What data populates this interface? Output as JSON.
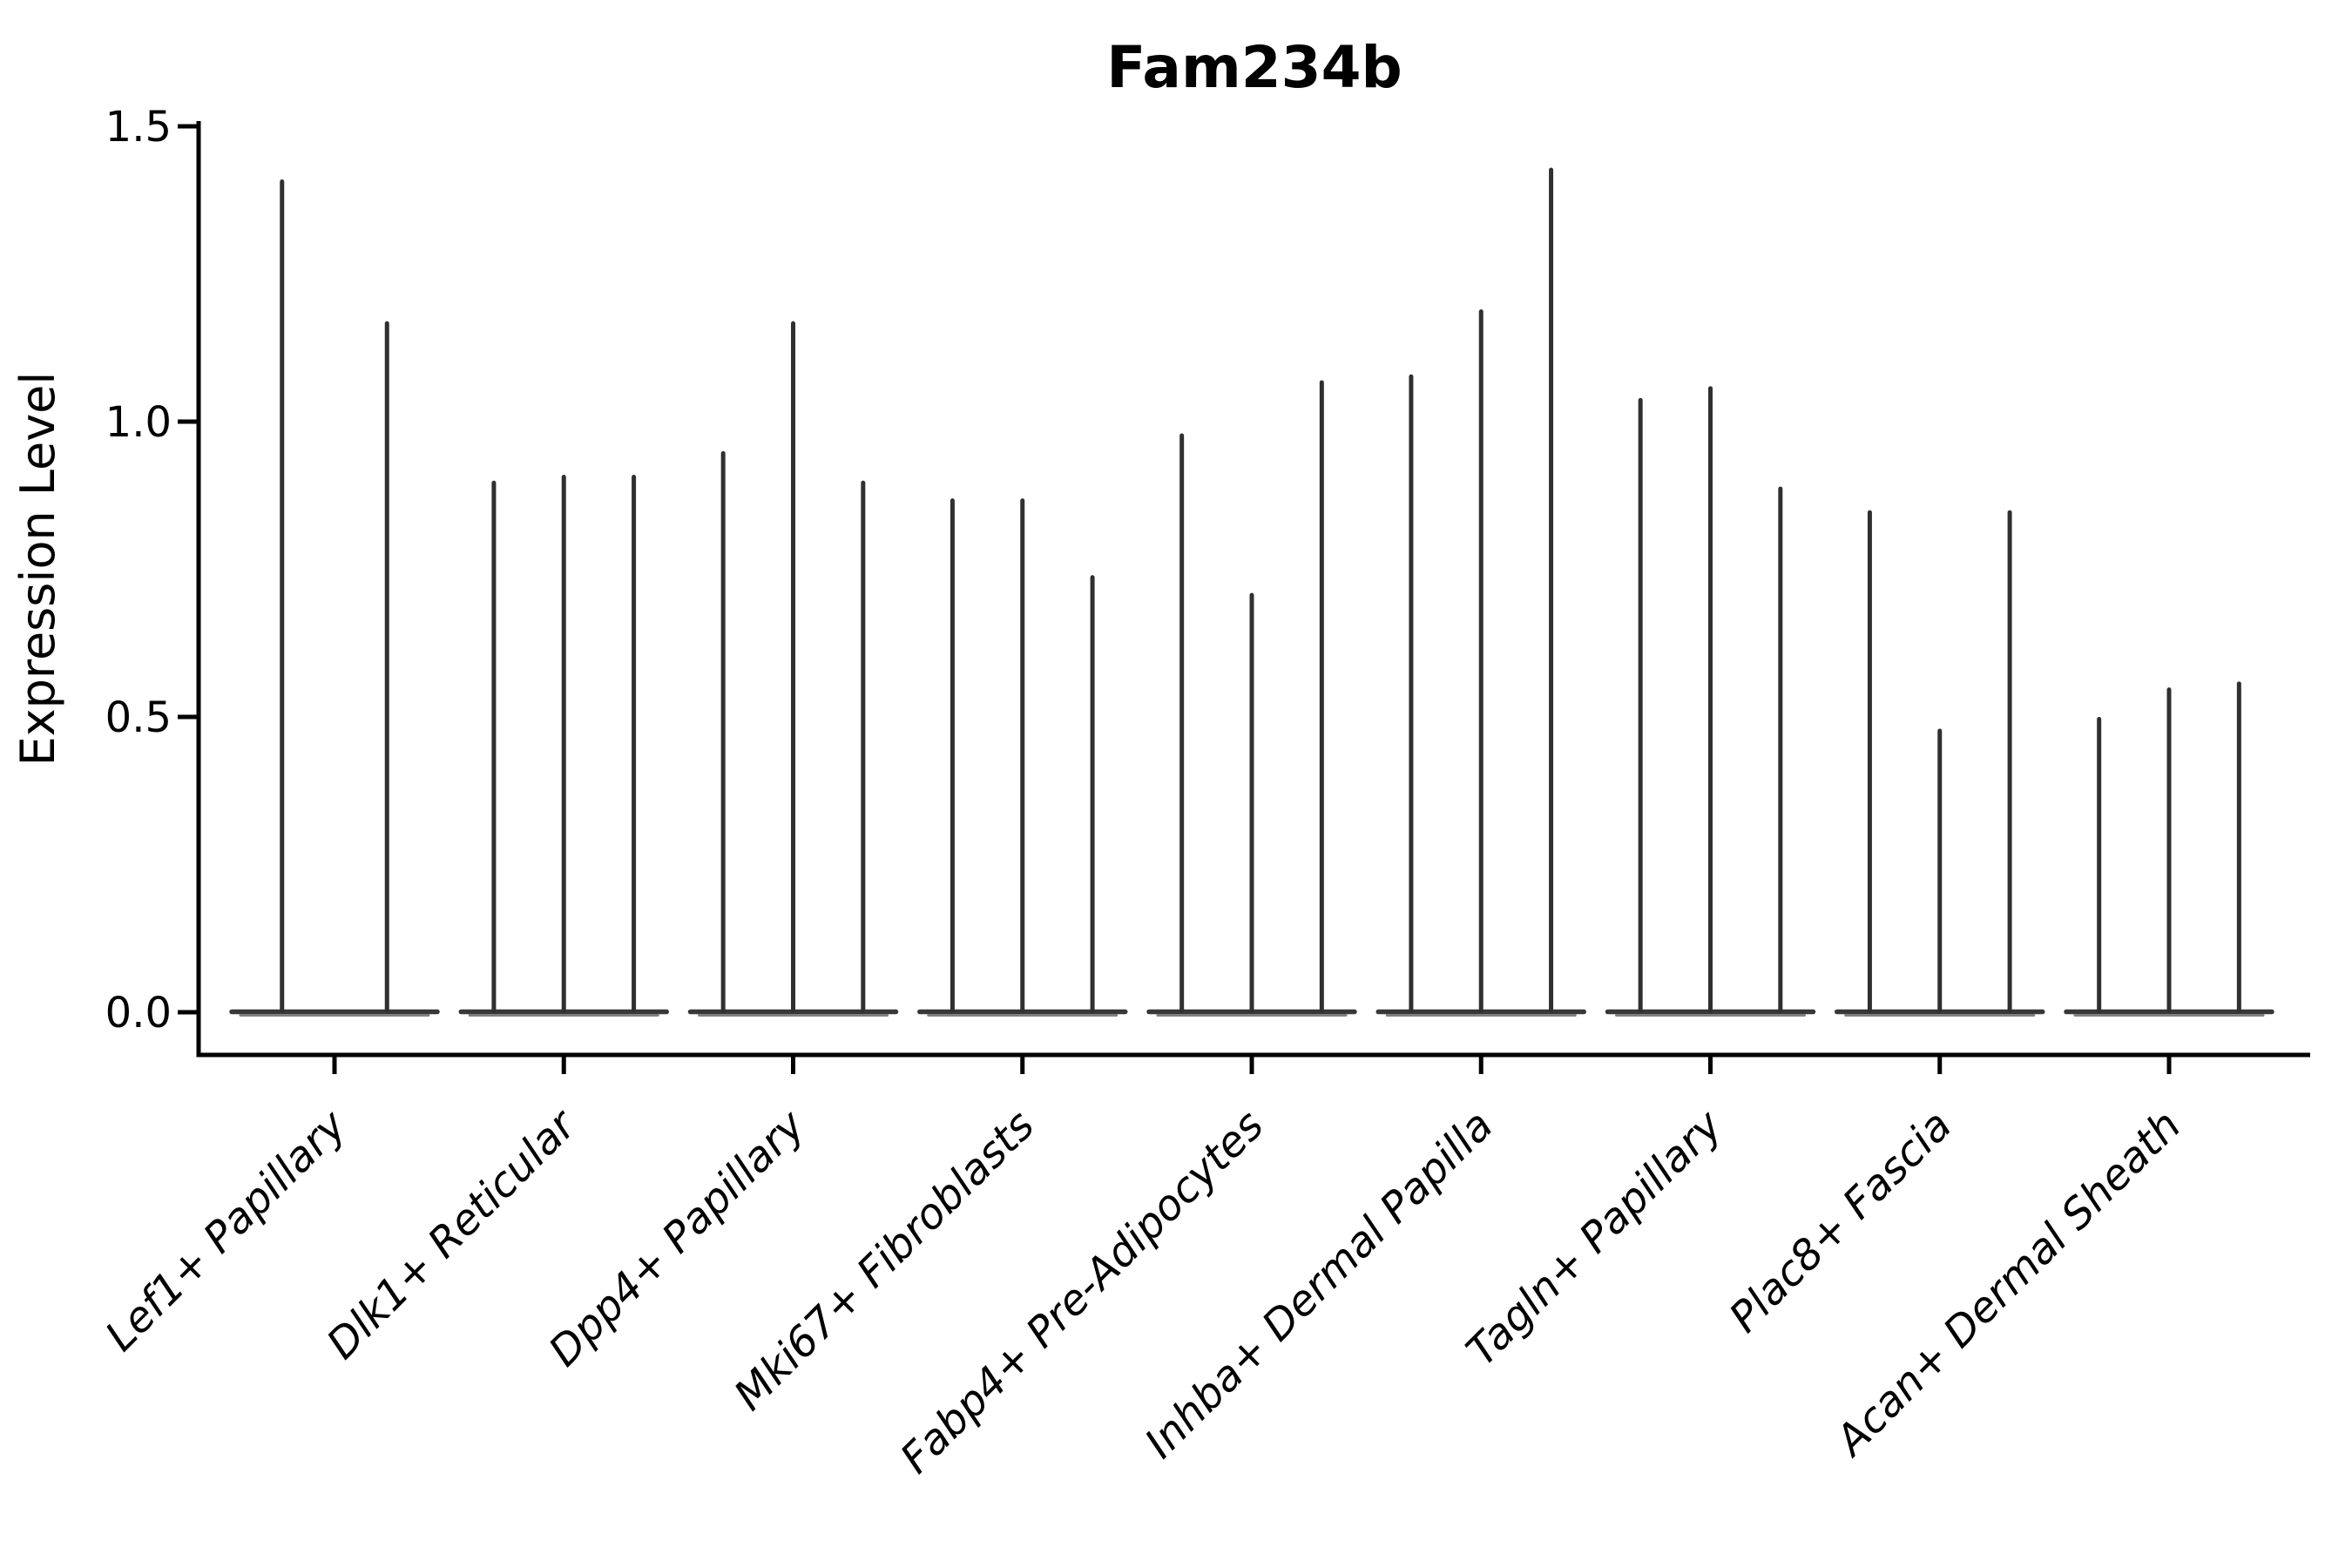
{
  "chart_data": {
    "type": "violin",
    "title": "Fam234b",
    "ylabel": "Expression Level",
    "xlabel": "",
    "ylim": [
      -0.07,
      1.5
    ],
    "yticks": [
      0.0,
      0.5,
      1.0,
      1.5
    ],
    "ytick_labels": [
      "0.0",
      "0.5",
      "1.0",
      "1.5"
    ],
    "grid": false,
    "legend": false,
    "x_tick_label_rotation_deg": 45,
    "categories": [
      "Lef1+ Papillary",
      "Dlk1+ Reticular",
      "Dpp4+ Papillary",
      "Mki67+ Fibroblasts",
      "Fabp4+ Pre-Adipocytes",
      "Inhba+ Dermal Papilla",
      "Tagln+ Papillary",
      "Plac8+ Fascia",
      "Acan+ Dermal Sheath"
    ],
    "series": [
      {
        "category": "Lef1+ Papillary",
        "violin_maxima": [
          1.41,
          1.17
        ],
        "bulk_at": 0.0
      },
      {
        "category": "Dlk1+ Reticular",
        "violin_maxima": [
          0.9,
          0.91,
          0.91
        ],
        "bulk_at": 0.0
      },
      {
        "category": "Dpp4+ Papillary",
        "violin_maxima": [
          0.95,
          1.17,
          0.9
        ],
        "bulk_at": 0.0
      },
      {
        "category": "Mki67+ Fibroblasts",
        "violin_maxima": [
          0.87,
          0.87,
          0.74
        ],
        "bulk_at": 0.0
      },
      {
        "category": "Fabp4+ Pre-Adipocytes",
        "violin_maxima": [
          0.98,
          0.71,
          1.07
        ],
        "bulk_at": 0.0
      },
      {
        "category": "Inhba+ Dermal Papilla",
        "violin_maxima": [
          1.08,
          1.19,
          1.43
        ],
        "bulk_at": 0.0
      },
      {
        "category": "Tagln+ Papillary",
        "violin_maxima": [
          1.04,
          1.06,
          0.89
        ],
        "bulk_at": 0.0
      },
      {
        "category": "Plac8+ Fascia",
        "violin_maxima": [
          0.85,
          0.48,
          0.85
        ],
        "bulk_at": 0.0
      },
      {
        "category": "Acan+ Dermal Sheath",
        "violin_maxima": [
          0.5,
          0.55,
          0.56
        ],
        "bulk_at": 0.0
      }
    ],
    "style": {
      "violin_color": "#303030",
      "violin_base_color": "#383838",
      "violin_base_fringe_color": "#808080",
      "axis_color": "#000000",
      "background": "#ffffff"
    }
  }
}
